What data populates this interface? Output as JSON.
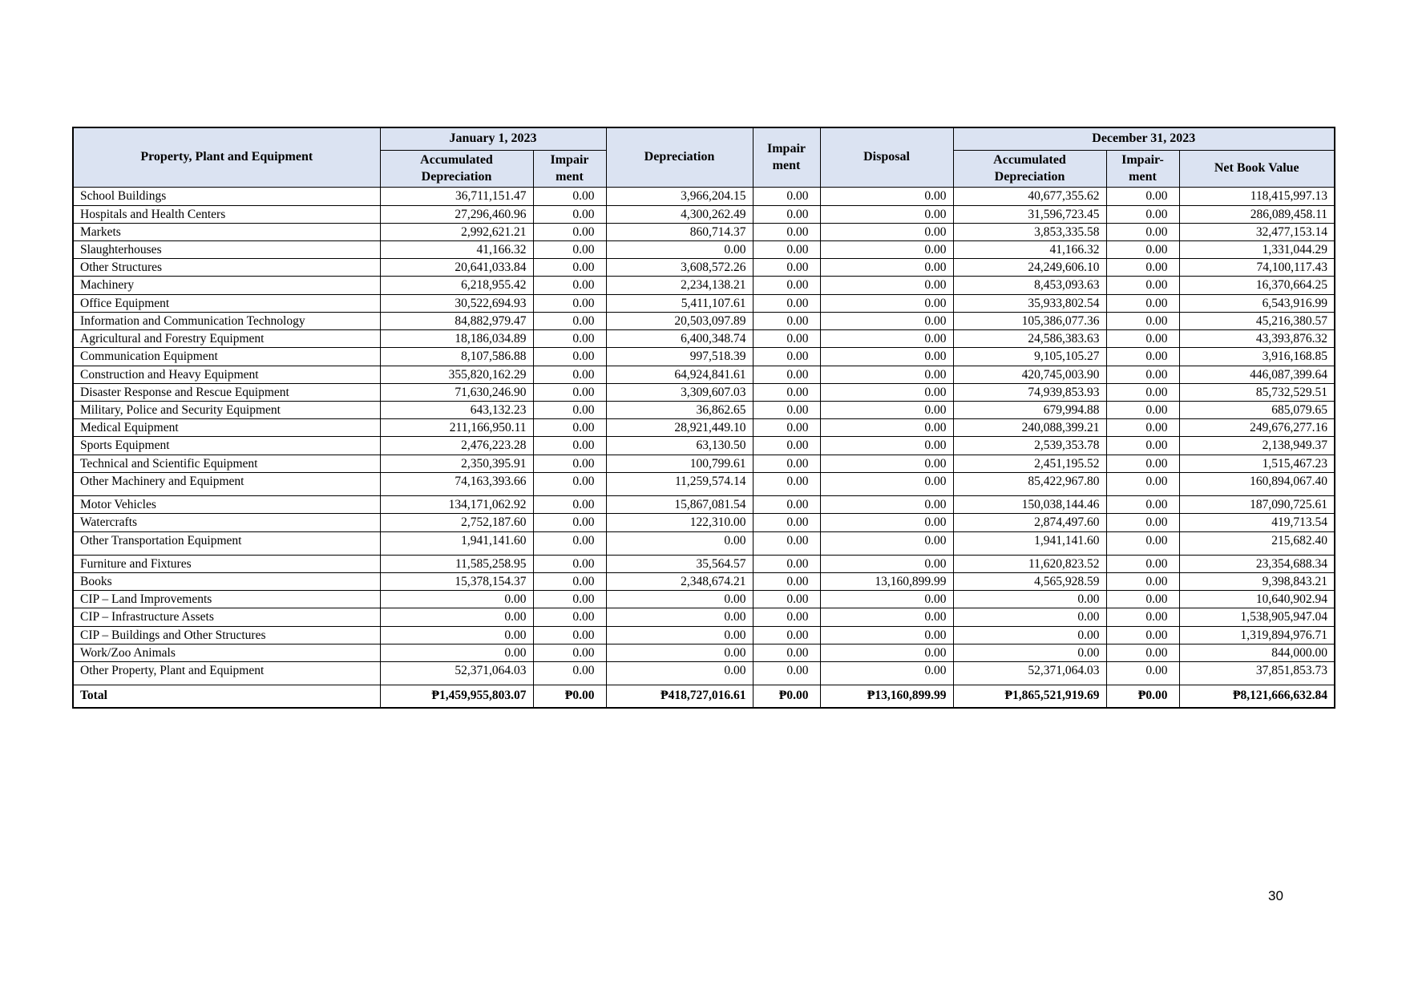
{
  "page": {
    "number": "30"
  },
  "table": {
    "header": {
      "col_property": "Property, Plant and Equipment",
      "group_jan": "January 1, 2023",
      "col_accum_dep_jan": "Accumulated Depreciation",
      "col_impair_jan": "Impair ment",
      "col_depreciation": "Depreciation",
      "col_impair_mid": "Impair ment",
      "col_disposal": "Disposal",
      "group_dec": "December 31, 2023",
      "col_accum_dep_dec": "Accumulated Depreciation",
      "col_impair_dec": "Impair-ment",
      "col_net_book_value": "Net Book Value"
    },
    "rows": [
      {
        "name": "School Buildings",
        "values": [
          "36,711,151.47",
          "0.00",
          "3,966,204.15",
          "0.00",
          "0.00",
          "40,677,355.62",
          "0.00",
          "118,415,997.13"
        ]
      },
      {
        "name": "Hospitals and Health Centers",
        "values": [
          "27,296,460.96",
          "0.00",
          "4,300,262.49",
          "0.00",
          "0.00",
          "31,596,723.45",
          "0.00",
          "286,089,458.11"
        ]
      },
      {
        "name": "Markets",
        "values": [
          "2,992,621.21",
          "0.00",
          "860,714.37",
          "0.00",
          "0.00",
          "3,853,335.58",
          "0.00",
          "32,477,153.14"
        ]
      },
      {
        "name": "Slaughterhouses",
        "values": [
          "41,166.32",
          "0.00",
          "0.00",
          "0.00",
          "0.00",
          "41,166.32",
          "0.00",
          "1,331,044.29"
        ]
      },
      {
        "name": "Other Structures",
        "values": [
          "20,641,033.84",
          "0.00",
          "3,608,572.26",
          "0.00",
          "0.00",
          "24,249,606.10",
          "0.00",
          "74,100,117.43"
        ]
      },
      {
        "name": "Machinery",
        "values": [
          "6,218,955.42",
          "0.00",
          "2,234,138.21",
          "0.00",
          "0.00",
          "8,453,093.63",
          "0.00",
          "16,370,664.25"
        ]
      },
      {
        "name": "Office Equipment",
        "values": [
          "30,522,694.93",
          "0.00",
          "5,411,107.61",
          "0.00",
          "0.00",
          "35,933,802.54",
          "0.00",
          "6,543,916.99"
        ]
      },
      {
        "name": "Information and Communication Technology",
        "values": [
          "84,882,979.47",
          "0.00",
          "20,503,097.89",
          "0.00",
          "0.00",
          "105,386,077.36",
          "0.00",
          "45,216,380.57"
        ]
      },
      {
        "name": "Agricultural and Forestry Equipment",
        "values": [
          "18,186,034.89",
          "0.00",
          "6,400,348.74",
          "0.00",
          "0.00",
          "24,586,383.63",
          "0.00",
          "43,393,876.32"
        ]
      },
      {
        "name": "Communication Equipment",
        "values": [
          "8,107,586.88",
          "0.00",
          "997,518.39",
          "0.00",
          "0.00",
          "9,105,105.27",
          "0.00",
          "3,916,168.85"
        ]
      },
      {
        "name": "Construction and Heavy Equipment",
        "values": [
          "355,820,162.29",
          "0.00",
          "64,924,841.61",
          "0.00",
          "0.00",
          "420,745,003.90",
          "0.00",
          "446,087,399.64"
        ]
      },
      {
        "name": "Disaster Response and Rescue Equipment",
        "values": [
          "71,630,246.90",
          "0.00",
          "3,309,607.03",
          "0.00",
          "0.00",
          "74,939,853.93",
          "0.00",
          "85,732,529.51"
        ]
      },
      {
        "name": "Military, Police and Security Equipment",
        "values": [
          "643,132.23",
          "0.00",
          "36,862.65",
          "0.00",
          "0.00",
          "679,994.88",
          "0.00",
          "685,079.65"
        ]
      },
      {
        "name": "Medical Equipment",
        "values": [
          "211,166,950.11",
          "0.00",
          "28,921,449.10",
          "0.00",
          "0.00",
          "240,088,399.21",
          "0.00",
          "249,676,277.16"
        ]
      },
      {
        "name": "Sports Equipment",
        "values": [
          "2,476,223.28",
          "0.00",
          "63,130.50",
          "0.00",
          "0.00",
          "2,539,353.78",
          "0.00",
          "2,138,949.37"
        ]
      },
      {
        "name": "Technical and Scientific Equipment",
        "values": [
          "2,350,395.91",
          "0.00",
          "100,799.61",
          "0.00",
          "0.00",
          "2,451,195.52",
          "0.00",
          "1,515,467.23"
        ]
      },
      {
        "name": "Other Machinery and Equipment",
        "group_end": true,
        "values": [
          "74,163,393.66",
          "0.00",
          "11,259,574.14",
          "0.00",
          "0.00",
          "85,422,967.80",
          "0.00",
          "160,894,067.40"
        ]
      },
      {
        "name": "Motor Vehicles",
        "values": [
          "134,171,062.92",
          "0.00",
          "15,867,081.54",
          "0.00",
          "0.00",
          "150,038,144.46",
          "0.00",
          "187,090,725.61"
        ]
      },
      {
        "name": "Watercrafts",
        "values": [
          "2,752,187.60",
          "0.00",
          "122,310.00",
          "0.00",
          "0.00",
          "2,874,497.60",
          "0.00",
          "419,713.54"
        ]
      },
      {
        "name": "Other Transportation Equipment",
        "group_end": true,
        "values": [
          "1,941,141.60",
          "0.00",
          "0.00",
          "0.00",
          "0.00",
          "1,941,141.60",
          "0.00",
          "215,682.40"
        ]
      },
      {
        "name": "Furniture and Fixtures",
        "values": [
          "11,585,258.95",
          "0.00",
          "35,564.57",
          "0.00",
          "0.00",
          "11,620,823.52",
          "0.00",
          "23,354,688.34"
        ]
      },
      {
        "name": "Books",
        "values": [
          "15,378,154.37",
          "0.00",
          "2,348,674.21",
          "0.00",
          "13,160,899.99",
          "4,565,928.59",
          "0.00",
          "9,398,843.21"
        ]
      },
      {
        "name": "CIP – Land Improvements",
        "values": [
          "0.00",
          "0.00",
          "0.00",
          "0.00",
          "0.00",
          "0.00",
          "0.00",
          "10,640,902.94"
        ]
      },
      {
        "name": "CIP – Infrastructure Assets",
        "values": [
          "0.00",
          "0.00",
          "0.00",
          "0.00",
          "0.00",
          "0.00",
          "0.00",
          "1,538,905,947.04"
        ]
      },
      {
        "name": "CIP – Buildings and Other Structures",
        "values": [
          "0.00",
          "0.00",
          "0.00",
          "0.00",
          "0.00",
          "0.00",
          "0.00",
          "1,319,894,976.71"
        ]
      },
      {
        "name": "Work/Zoo Animals",
        "values": [
          "0.00",
          "0.00",
          "0.00",
          "0.00",
          "0.00",
          "0.00",
          "0.00",
          "844,000.00"
        ]
      },
      {
        "name": "Other Property, Plant and Equipment",
        "group_end": true,
        "values": [
          "52,371,064.03",
          "0.00",
          "0.00",
          "0.00",
          "0.00",
          "52,371,064.03",
          "0.00",
          "37,851,853.73"
        ]
      }
    ],
    "total": {
      "label": "Total",
      "values": [
        "₱1,459,955,803.07",
        "₱0.00",
        "₱418,727,016.61",
        "₱0.00",
        "₱13,160,899.99",
        "₱1,865,521,919.69",
        "₱0.00",
        "₱8,121,666,632.84"
      ]
    }
  }
}
